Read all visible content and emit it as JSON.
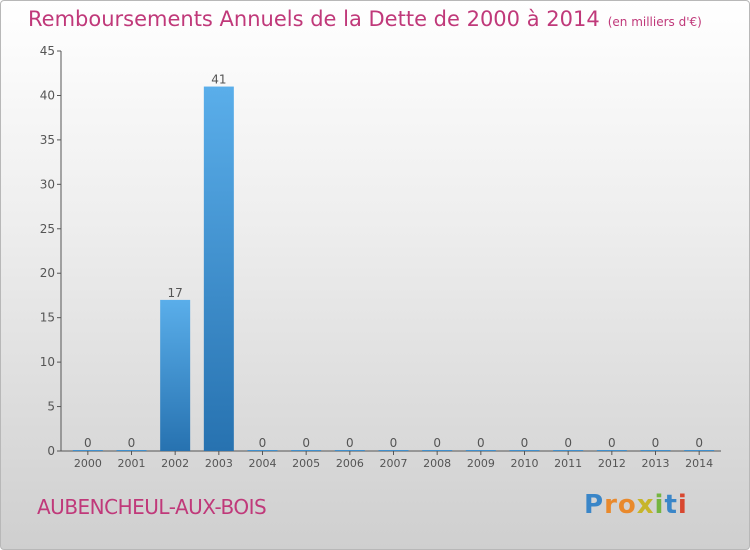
{
  "title": "Remboursements Annuels de la Dette de 2000 à 2014",
  "title_unit": "(en milliers d'€)",
  "town": "AUBENCHEUL-AUX-BOIS",
  "logo": {
    "text": "Proxiti"
  },
  "colors": {
    "title": "#c0397a",
    "bar_top": "#5aaeea",
    "bar_bottom": "#2772b0",
    "axis": "#555555",
    "label": "#555555"
  },
  "chart_data": {
    "type": "bar",
    "categories": [
      "2000",
      "2001",
      "2002",
      "2003",
      "2004",
      "2005",
      "2006",
      "2007",
      "2008",
      "2009",
      "2010",
      "2011",
      "2012",
      "2013",
      "2014"
    ],
    "values": [
      0,
      0,
      17,
      41,
      0,
      0,
      0,
      0,
      0,
      0,
      0,
      0,
      0,
      0,
      0
    ],
    "data_labels": [
      "0",
      "0",
      "17",
      "41",
      "0",
      "0",
      "0",
      "0",
      "0",
      "0",
      "0",
      "0",
      "0",
      "0",
      "0"
    ],
    "title": "Remboursements Annuels de la Dette de 2000 à 2014",
    "unit": "(en milliers d'€)",
    "xlabel": "",
    "ylabel": "",
    "ylim": [
      0,
      45
    ],
    "yticks": [
      0,
      5,
      10,
      15,
      20,
      25,
      30,
      35,
      40,
      45
    ],
    "grid": false,
    "legend": "none"
  }
}
